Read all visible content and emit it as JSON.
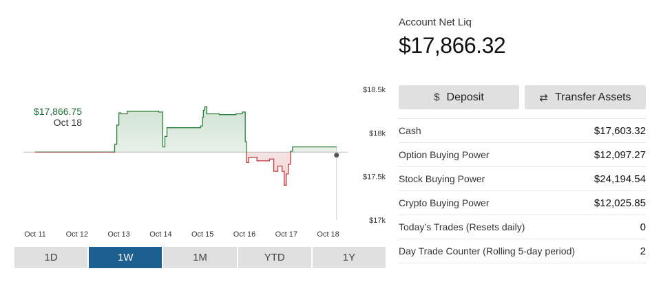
{
  "account": {
    "label": "Account Net Liq",
    "value": "$17,866.32"
  },
  "actions": {
    "deposit": {
      "label": "Deposit",
      "icon": "dollar-icon"
    },
    "transfer": {
      "label": "Transfer Assets",
      "icon": "swap-arrows-icon"
    }
  },
  "stats": [
    {
      "label": "Cash",
      "value": "$17,603.32"
    },
    {
      "label": "Option Buying Power",
      "value": "$12,097.27"
    },
    {
      "label": "Stock Buying Power",
      "value": "$24,194.54"
    },
    {
      "label": "Crypto Buying Power",
      "value": "$12,025.85"
    },
    {
      "label": "Today’s Trades (Resets daily)",
      "value": "0"
    },
    {
      "label": "Day Trade Counter (Rolling 5-day period)",
      "value": "2"
    }
  ],
  "range_tabs": {
    "options": [
      "1D",
      "1W",
      "1M",
      "YTD",
      "1Y"
    ],
    "selected": "1W"
  },
  "tooltip": {
    "value": "$17,866.75",
    "date": "Oct 18"
  },
  "colors": {
    "up": "#2e7d3a",
    "down": "#c0393b",
    "tab_active": "#1e5f92",
    "tab_inactive": "#e0e0e0"
  },
  "chart_data": {
    "type": "line",
    "title": "",
    "x_tick_labels": [
      "Oct 11",
      "Oct 12",
      "Oct 13",
      "Oct 14",
      "Oct 15",
      "Oct 16",
      "Oct 17",
      "Oct 18"
    ],
    "y_tick_labels": [
      "$18.5k",
      "$18k",
      "$17.5k",
      "$17k"
    ],
    "y_ticks": [
      18500,
      18000,
      17500,
      17000
    ],
    "ylim": [
      17000,
      18500
    ],
    "baseline": 17780,
    "grid": false,
    "series": [
      {
        "x": [
          11.0,
          11.9,
          12.7,
          12.9,
          12.95,
          13.0,
          13.05,
          13.2,
          13.4,
          13.55,
          13.8,
          13.95,
          14.05,
          14.1,
          14.15,
          14.3,
          14.8,
          14.95,
          15.0,
          15.02,
          15.05,
          15.1,
          15.4,
          15.8,
          15.95,
          16.02,
          16.05,
          16.1,
          16.3,
          16.6,
          16.7,
          16.8,
          16.9,
          16.95,
          17.0,
          17.05,
          17.1,
          17.15,
          17.25,
          17.6,
          18.0,
          18.2
        ],
        "y": [
          17780,
          17780,
          17780,
          17870,
          18090,
          18230,
          18220,
          18250,
          18250,
          18250,
          18250,
          18240,
          17840,
          17960,
          18060,
          18060,
          18060,
          18080,
          18180,
          18260,
          18300,
          18220,
          18210,
          18220,
          18240,
          17900,
          17660,
          17720,
          17680,
          17700,
          17560,
          17620,
          17560,
          17400,
          17530,
          17640,
          17790,
          17840,
          17840,
          17840,
          17840,
          17840
        ]
      }
    ]
  }
}
